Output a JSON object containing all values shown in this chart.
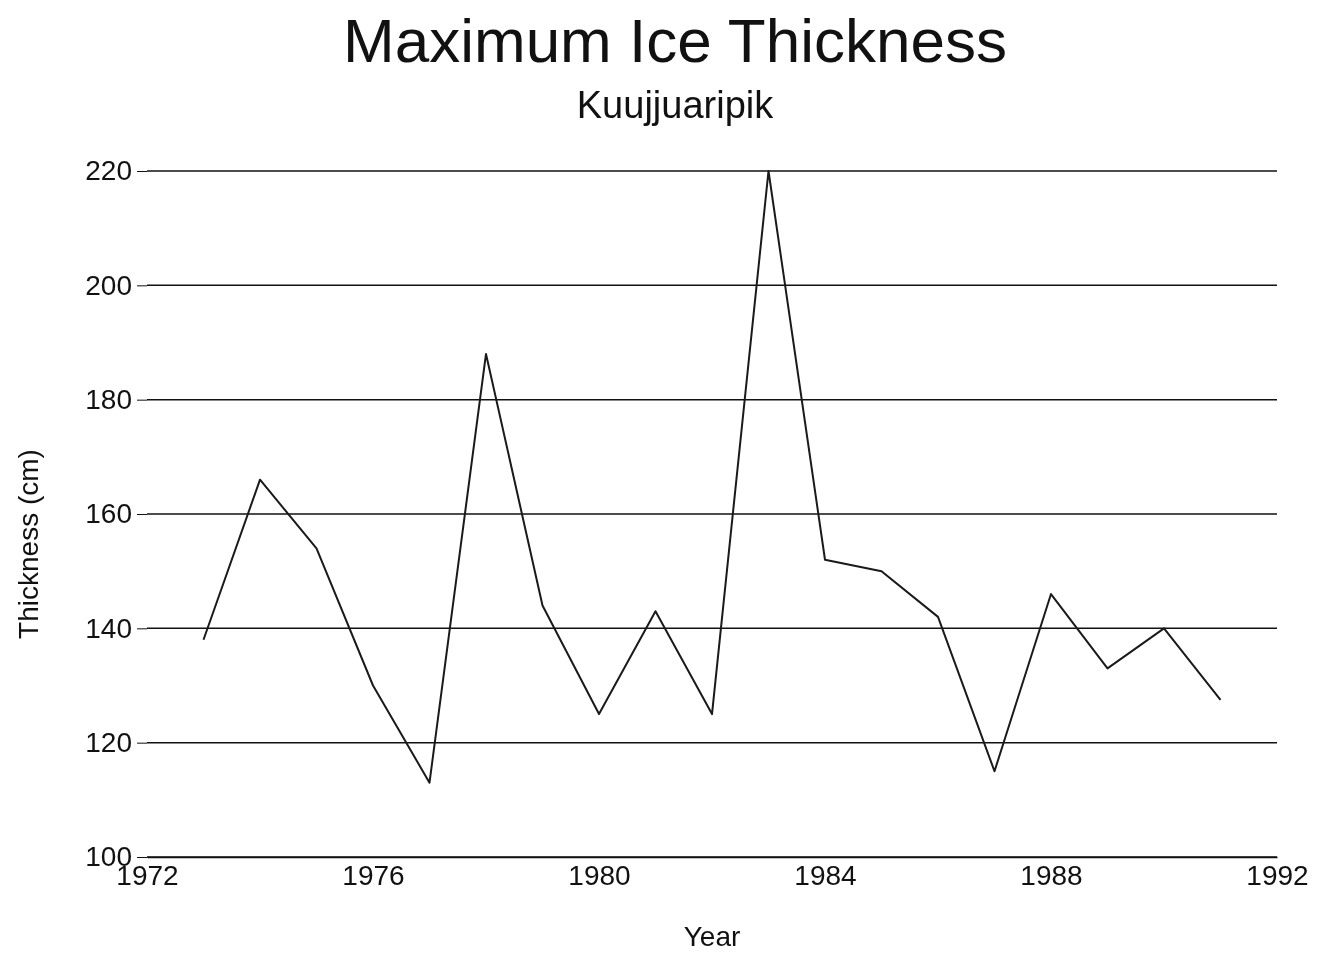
{
  "chart_data": {
    "type": "line",
    "title": "Maximum Ice Thickness",
    "subtitle": "Kuujjuaripik",
    "xlabel": "Year",
    "ylabel": "Thickness (cm)",
    "x": [
      1973,
      1974,
      1975,
      1976,
      1977,
      1978,
      1979,
      1980,
      1981,
      1982,
      1983,
      1984,
      1985,
      1986,
      1987,
      1988,
      1989,
      1990,
      1991
    ],
    "series": [
      {
        "color": "#1a1a1a",
        "values": [
          138,
          166,
          154,
          130,
          113,
          188,
          144,
          125,
          143,
          125,
          220,
          152,
          150,
          142,
          115,
          146,
          133,
          140,
          127.5
        ]
      }
    ],
    "xlim": [
      1972,
      1992
    ],
    "xticks": [
      1972,
      1976,
      1980,
      1984,
      1988,
      1992
    ],
    "ylim": [
      100,
      220
    ],
    "yticks": [
      100,
      120,
      140,
      160,
      180,
      200,
      220
    ],
    "grid": "y",
    "line_style": "solid"
  }
}
